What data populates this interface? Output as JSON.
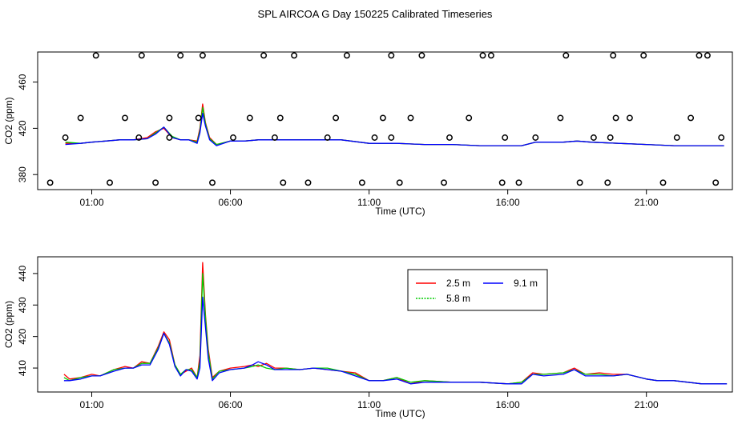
{
  "figure": {
    "title": "SPL AIRCOA G  Day 150225  Calibrated Timeseries"
  },
  "colors": {
    "red": "#ff0000",
    "green": "#00cc00",
    "blue": "#0000ff",
    "axis": "#000000"
  },
  "chart_data": [
    {
      "type": "scatter+line",
      "id": "top",
      "title": "",
      "xlabel": "Time (UTC)",
      "ylabel": "CO2 (ppm)",
      "xlim": [
        -0.95,
        24.1
      ],
      "ylim": [
        367,
        486
      ],
      "x_ticks": [
        1,
        6,
        11,
        16,
        21
      ],
      "x_tick_labels": [
        "01:00",
        "06:00",
        "11:00",
        "16:00",
        "21:00"
      ],
      "y_ticks": [
        380,
        420,
        460
      ],
      "y_tick_labels": [
        "380",
        "420",
        "460"
      ],
      "series": [
        {
          "name": "2.5 m",
          "color": "#ff0000",
          "x": [
            0.05,
            0.6,
            1,
            1.5,
            2,
            2.5,
            3,
            3.3,
            3.6,
            3.9,
            4.2,
            4.5,
            4.8,
            4.9,
            5,
            5.1,
            5.25,
            5.5,
            6,
            6.5,
            7,
            8,
            9,
            10,
            11,
            12,
            13,
            14,
            15,
            16,
            16.5,
            17,
            18,
            18.5,
            19,
            20,
            21,
            22,
            23,
            23.8
          ],
          "y": [
            407,
            407,
            408,
            409,
            410,
            410,
            412,
            417,
            420,
            412,
            410,
            410,
            409,
            420,
            441,
            425,
            412,
            406,
            409,
            409,
            410,
            410,
            410,
            410,
            407,
            407,
            406,
            406,
            405,
            405,
            405,
            408,
            408,
            409,
            408,
            407,
            406,
            405,
            405,
            405
          ]
        },
        {
          "name": "5.8 m",
          "color": "#00cc00",
          "x": [
            0.05,
            0.6,
            1,
            1.5,
            2,
            2.5,
            3,
            3.3,
            3.6,
            3.9,
            4.2,
            4.5,
            4.8,
            4.9,
            5,
            5.1,
            5.25,
            5.5,
            6,
            6.5,
            7,
            8,
            9,
            10,
            11,
            12,
            13,
            14,
            15,
            16,
            16.5,
            17,
            18,
            18.5,
            19,
            20,
            21,
            22,
            23,
            23.8
          ],
          "y": [
            408,
            407,
            408,
            409,
            410,
            410,
            411,
            416,
            421,
            413,
            410,
            410,
            408,
            418,
            438,
            424,
            411,
            406,
            409,
            409,
            410,
            410,
            410,
            410,
            407,
            407,
            406,
            406,
            405,
            405,
            405,
            408,
            408,
            409,
            408,
            407,
            406,
            405,
            405,
            405
          ]
        },
        {
          "name": "9.1 m",
          "color": "#0000ff",
          "x": [
            0.05,
            0.6,
            1,
            1.5,
            2,
            2.5,
            3,
            3.3,
            3.6,
            3.9,
            4.2,
            4.5,
            4.8,
            4.9,
            5,
            5.1,
            5.25,
            5.5,
            6,
            6.5,
            7,
            8,
            9,
            10,
            11,
            12,
            13,
            14,
            15,
            16,
            16.5,
            17,
            18,
            18.5,
            19,
            20,
            21,
            22,
            23,
            23.8
          ],
          "y": [
            406,
            407,
            408,
            409,
            410,
            410,
            411,
            415,
            421,
            412,
            410,
            410,
            407,
            416,
            433,
            422,
            410,
            405,
            409,
            409,
            410,
            410,
            410,
            410,
            407,
            407,
            406,
            406,
            405,
            405,
            405,
            408,
            408,
            409,
            408,
            407,
            406,
            405,
            405,
            405
          ]
        }
      ],
      "points": {
        "name": "open-circles",
        "x": [
          -0.5,
          0.05,
          0.6,
          1.15,
          1.65,
          2.2,
          2.7,
          2.8,
          3.3,
          3.8,
          3.8,
          4.2,
          4.85,
          5.0,
          5.35,
          6.1,
          6.7,
          7.2,
          7.6,
          7.8,
          7.9,
          8.3,
          8.8,
          9.5,
          9.8,
          10.2,
          10.75,
          11.2,
          11.5,
          11.8,
          11.8,
          12.1,
          12.5,
          12.9,
          13.7,
          13.9,
          14.6,
          15.1,
          15.4,
          15.8,
          15.9,
          16.4,
          17.0,
          17.9,
          18.1,
          18.6,
          19.1,
          19.6,
          19.7,
          19.9,
          19.8,
          20.4,
          20.9,
          21.6,
          22.1,
          22.6,
          22.9,
          23.2,
          23.5,
          23.7
        ],
        "y": [
          373,
          412,
          429,
          483,
          373,
          429,
          412,
          483,
          373,
          412,
          429,
          483,
          429,
          483,
          373,
          412,
          429,
          483,
          412,
          429,
          373,
          483,
          373,
          412,
          429,
          483,
          373,
          412,
          429,
          483,
          412,
          373,
          429,
          483,
          373,
          412,
          429,
          483,
          483,
          373,
          412,
          373,
          412,
          429,
          483,
          373,
          412,
          373,
          412,
          429,
          483,
          429,
          483,
          373,
          412,
          429,
          483,
          483,
          373,
          412
        ]
      }
    },
    {
      "type": "line",
      "id": "bottom",
      "title": "",
      "xlabel": "Time (UTC)",
      "ylabel": "CO2 (ppm)",
      "xlim": [
        -0.95,
        24.1
      ],
      "ylim": [
        402.4,
        445.3
      ],
      "x_ticks": [
        1,
        6,
        11,
        16,
        21
      ],
      "x_tick_labels": [
        "01:00",
        "06:00",
        "11:00",
        "16:00",
        "21:00"
      ],
      "y_ticks": [
        410,
        420,
        430,
        440
      ],
      "y_tick_labels": [
        "410",
        "420",
        "430",
        "440"
      ],
      "legend": {
        "placement": "top-center",
        "entries": [
          "2.5 m",
          "5.8 m",
          "9.1 m"
        ]
      },
      "series": [
        {
          "name": "2.5 m",
          "color": "#ff0000",
          "x": [
            0,
            0.2,
            0.6,
            1,
            1.3,
            1.8,
            2.2,
            2.5,
            2.8,
            3.1,
            3.4,
            3.6,
            3.8,
            4.0,
            4.2,
            4.4,
            4.6,
            4.8,
            4.9,
            5.0,
            5.1,
            5.2,
            5.35,
            5.6,
            6.0,
            6.5,
            6.8,
            7.0,
            7.3,
            7.6,
            8.0,
            8.5,
            9.0,
            9.5,
            10.0,
            10.5,
            11.0,
            11.5,
            12.0,
            12.5,
            13.0,
            14.0,
            15.0,
            16.0,
            16.5,
            16.9,
            17.3,
            18.0,
            18.4,
            18.8,
            19.3,
            19.8,
            20.3,
            21.0,
            21.4,
            22.0,
            22.5,
            23.0,
            23.5,
            23.9
          ],
          "y": [
            408,
            406.5,
            407,
            408,
            407.5,
            409.5,
            410.5,
            410,
            412,
            411.5,
            417,
            421.5,
            419,
            411,
            408,
            409,
            410,
            407,
            414,
            443.5,
            427,
            416,
            407,
            409,
            410,
            410.5,
            411,
            410.5,
            411.5,
            410,
            410,
            409.5,
            410,
            409.5,
            409,
            408.5,
            406,
            406,
            407,
            405,
            406,
            405.5,
            405.5,
            405,
            405.5,
            408.5,
            408,
            408.5,
            410,
            408,
            408.5,
            408,
            408,
            406.5,
            406,
            406,
            405.5,
            405,
            405,
            405
          ]
        },
        {
          "name": "5.8 m",
          "color": "#00cc00",
          "x": [
            0,
            0.2,
            0.6,
            1,
            1.3,
            1.8,
            2.2,
            2.5,
            2.8,
            3.1,
            3.4,
            3.6,
            3.8,
            4.0,
            4.2,
            4.4,
            4.6,
            4.8,
            4.9,
            5.0,
            5.1,
            5.2,
            5.35,
            5.6,
            6.0,
            6.5,
            6.8,
            7.0,
            7.3,
            7.6,
            8.0,
            8.5,
            9.0,
            9.5,
            10.0,
            10.5,
            11.0,
            11.5,
            12.0,
            12.5,
            13.0,
            14.0,
            15.0,
            16.0,
            16.5,
            16.9,
            17.3,
            18.0,
            18.4,
            18.8,
            19.3,
            19.8,
            20.3,
            21.0,
            21.4,
            22.0,
            22.5,
            23.0,
            23.5,
            23.9
          ],
          "y": [
            407,
            406,
            407,
            407.5,
            407.5,
            409.5,
            410,
            410,
            411.5,
            411.5,
            416.5,
            421,
            418,
            411,
            408,
            409.5,
            409.5,
            407,
            412,
            440,
            426,
            415,
            406.5,
            409,
            409.5,
            410,
            410.5,
            411,
            410,
            409.5,
            410,
            409.5,
            410,
            410,
            409,
            408,
            406,
            406,
            407,
            405.5,
            406,
            405.5,
            405.5,
            405,
            405.5,
            408,
            408,
            408.5,
            409.5,
            408,
            408,
            407.5,
            408,
            406.5,
            406,
            406,
            405.5,
            405,
            405,
            405
          ]
        },
        {
          "name": "9.1 m",
          "color": "#0000ff",
          "x": [
            0,
            0.2,
            0.6,
            1,
            1.3,
            1.8,
            2.2,
            2.5,
            2.8,
            3.1,
            3.4,
            3.6,
            3.8,
            4.0,
            4.2,
            4.4,
            4.6,
            4.8,
            4.9,
            5.0,
            5.1,
            5.2,
            5.35,
            5.6,
            6.0,
            6.5,
            6.8,
            7.0,
            7.3,
            7.6,
            8.0,
            8.5,
            9.0,
            9.5,
            10.0,
            10.5,
            11.0,
            11.5,
            12.0,
            12.5,
            13.0,
            14.0,
            15.0,
            16.0,
            16.5,
            16.9,
            17.3,
            18.0,
            18.4,
            18.8,
            19.3,
            19.8,
            20.3,
            21.0,
            21.4,
            22.0,
            22.5,
            23.0,
            23.5,
            23.9
          ],
          "y": [
            406,
            406,
            406.5,
            407.5,
            407.5,
            409,
            410,
            410,
            411,
            411,
            416,
            421,
            417.5,
            410.5,
            407.5,
            409.5,
            409,
            406.5,
            410,
            432.5,
            423,
            413,
            406,
            408.5,
            409.5,
            410,
            411,
            412,
            411,
            409.5,
            409.5,
            409.5,
            410,
            409.5,
            409,
            407.5,
            406,
            406,
            406.5,
            405,
            405.5,
            405.5,
            405.5,
            405,
            405,
            408,
            407.5,
            408,
            409.5,
            407.5,
            407.5,
            407.5,
            408,
            406.5,
            406,
            406,
            405.5,
            405,
            405,
            405
          ]
        }
      ]
    }
  ]
}
